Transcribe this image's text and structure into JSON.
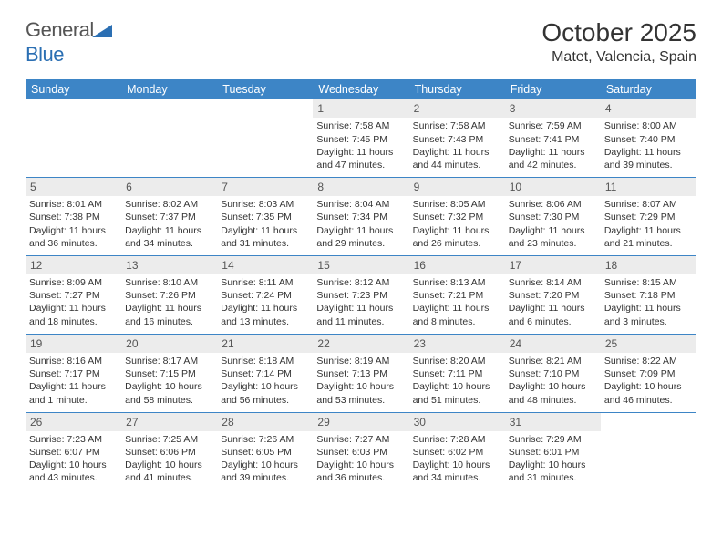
{
  "logo": {
    "text1": "General",
    "text2": "Blue"
  },
  "title": "October 2025",
  "location": "Matet, Valencia, Spain",
  "colors": {
    "header_bg": "#3d85c6",
    "daynum_bg": "#ececec",
    "text": "#333333",
    "border": "#3d85c6"
  },
  "dow": [
    "Sunday",
    "Monday",
    "Tuesday",
    "Wednesday",
    "Thursday",
    "Friday",
    "Saturday"
  ],
  "weeks": [
    [
      {
        "n": "",
        "sr": "",
        "ss": "",
        "dl": ""
      },
      {
        "n": "",
        "sr": "",
        "ss": "",
        "dl": ""
      },
      {
        "n": "",
        "sr": "",
        "ss": "",
        "dl": ""
      },
      {
        "n": "1",
        "sr": "Sunrise: 7:58 AM",
        "ss": "Sunset: 7:45 PM",
        "dl": "Daylight: 11 hours and 47 minutes."
      },
      {
        "n": "2",
        "sr": "Sunrise: 7:58 AM",
        "ss": "Sunset: 7:43 PM",
        "dl": "Daylight: 11 hours and 44 minutes."
      },
      {
        "n": "3",
        "sr": "Sunrise: 7:59 AM",
        "ss": "Sunset: 7:41 PM",
        "dl": "Daylight: 11 hours and 42 minutes."
      },
      {
        "n": "4",
        "sr": "Sunrise: 8:00 AM",
        "ss": "Sunset: 7:40 PM",
        "dl": "Daylight: 11 hours and 39 minutes."
      }
    ],
    [
      {
        "n": "5",
        "sr": "Sunrise: 8:01 AM",
        "ss": "Sunset: 7:38 PM",
        "dl": "Daylight: 11 hours and 36 minutes."
      },
      {
        "n": "6",
        "sr": "Sunrise: 8:02 AM",
        "ss": "Sunset: 7:37 PM",
        "dl": "Daylight: 11 hours and 34 minutes."
      },
      {
        "n": "7",
        "sr": "Sunrise: 8:03 AM",
        "ss": "Sunset: 7:35 PM",
        "dl": "Daylight: 11 hours and 31 minutes."
      },
      {
        "n": "8",
        "sr": "Sunrise: 8:04 AM",
        "ss": "Sunset: 7:34 PM",
        "dl": "Daylight: 11 hours and 29 minutes."
      },
      {
        "n": "9",
        "sr": "Sunrise: 8:05 AM",
        "ss": "Sunset: 7:32 PM",
        "dl": "Daylight: 11 hours and 26 minutes."
      },
      {
        "n": "10",
        "sr": "Sunrise: 8:06 AM",
        "ss": "Sunset: 7:30 PM",
        "dl": "Daylight: 11 hours and 23 minutes."
      },
      {
        "n": "11",
        "sr": "Sunrise: 8:07 AM",
        "ss": "Sunset: 7:29 PM",
        "dl": "Daylight: 11 hours and 21 minutes."
      }
    ],
    [
      {
        "n": "12",
        "sr": "Sunrise: 8:09 AM",
        "ss": "Sunset: 7:27 PM",
        "dl": "Daylight: 11 hours and 18 minutes."
      },
      {
        "n": "13",
        "sr": "Sunrise: 8:10 AM",
        "ss": "Sunset: 7:26 PM",
        "dl": "Daylight: 11 hours and 16 minutes."
      },
      {
        "n": "14",
        "sr": "Sunrise: 8:11 AM",
        "ss": "Sunset: 7:24 PM",
        "dl": "Daylight: 11 hours and 13 minutes."
      },
      {
        "n": "15",
        "sr": "Sunrise: 8:12 AM",
        "ss": "Sunset: 7:23 PM",
        "dl": "Daylight: 11 hours and 11 minutes."
      },
      {
        "n": "16",
        "sr": "Sunrise: 8:13 AM",
        "ss": "Sunset: 7:21 PM",
        "dl": "Daylight: 11 hours and 8 minutes."
      },
      {
        "n": "17",
        "sr": "Sunrise: 8:14 AM",
        "ss": "Sunset: 7:20 PM",
        "dl": "Daylight: 11 hours and 6 minutes."
      },
      {
        "n": "18",
        "sr": "Sunrise: 8:15 AM",
        "ss": "Sunset: 7:18 PM",
        "dl": "Daylight: 11 hours and 3 minutes."
      }
    ],
    [
      {
        "n": "19",
        "sr": "Sunrise: 8:16 AM",
        "ss": "Sunset: 7:17 PM",
        "dl": "Daylight: 11 hours and 1 minute."
      },
      {
        "n": "20",
        "sr": "Sunrise: 8:17 AM",
        "ss": "Sunset: 7:15 PM",
        "dl": "Daylight: 10 hours and 58 minutes."
      },
      {
        "n": "21",
        "sr": "Sunrise: 8:18 AM",
        "ss": "Sunset: 7:14 PM",
        "dl": "Daylight: 10 hours and 56 minutes."
      },
      {
        "n": "22",
        "sr": "Sunrise: 8:19 AM",
        "ss": "Sunset: 7:13 PM",
        "dl": "Daylight: 10 hours and 53 minutes."
      },
      {
        "n": "23",
        "sr": "Sunrise: 8:20 AM",
        "ss": "Sunset: 7:11 PM",
        "dl": "Daylight: 10 hours and 51 minutes."
      },
      {
        "n": "24",
        "sr": "Sunrise: 8:21 AM",
        "ss": "Sunset: 7:10 PM",
        "dl": "Daylight: 10 hours and 48 minutes."
      },
      {
        "n": "25",
        "sr": "Sunrise: 8:22 AM",
        "ss": "Sunset: 7:09 PM",
        "dl": "Daylight: 10 hours and 46 minutes."
      }
    ],
    [
      {
        "n": "26",
        "sr": "Sunrise: 7:23 AM",
        "ss": "Sunset: 6:07 PM",
        "dl": "Daylight: 10 hours and 43 minutes."
      },
      {
        "n": "27",
        "sr": "Sunrise: 7:25 AM",
        "ss": "Sunset: 6:06 PM",
        "dl": "Daylight: 10 hours and 41 minutes."
      },
      {
        "n": "28",
        "sr": "Sunrise: 7:26 AM",
        "ss": "Sunset: 6:05 PM",
        "dl": "Daylight: 10 hours and 39 minutes."
      },
      {
        "n": "29",
        "sr": "Sunrise: 7:27 AM",
        "ss": "Sunset: 6:03 PM",
        "dl": "Daylight: 10 hours and 36 minutes."
      },
      {
        "n": "30",
        "sr": "Sunrise: 7:28 AM",
        "ss": "Sunset: 6:02 PM",
        "dl": "Daylight: 10 hours and 34 minutes."
      },
      {
        "n": "31",
        "sr": "Sunrise: 7:29 AM",
        "ss": "Sunset: 6:01 PM",
        "dl": "Daylight: 10 hours and 31 minutes."
      },
      {
        "n": "",
        "sr": "",
        "ss": "",
        "dl": ""
      }
    ]
  ]
}
